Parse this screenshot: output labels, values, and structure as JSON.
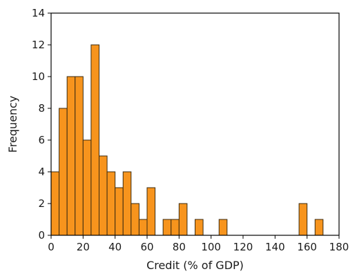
{
  "chart_data": {
    "type": "bar",
    "title": "",
    "xlabel": "Credit (% of GDP)",
    "ylabel": "Frequency",
    "xlim": [
      0,
      180
    ],
    "ylim": [
      0,
      14
    ],
    "xticks": [
      0,
      20,
      40,
      60,
      80,
      100,
      120,
      140,
      160,
      180
    ],
    "yticks": [
      0,
      2,
      4,
      6,
      8,
      10,
      12,
      14
    ],
    "bin_width": 5,
    "bins": [
      {
        "x0": 0,
        "x1": 5,
        "value": 4
      },
      {
        "x0": 5,
        "x1": 10,
        "value": 8
      },
      {
        "x0": 10,
        "x1": 15,
        "value": 10
      },
      {
        "x0": 15,
        "x1": 20,
        "value": 10
      },
      {
        "x0": 20,
        "x1": 25,
        "value": 6
      },
      {
        "x0": 25,
        "x1": 30,
        "value": 12
      },
      {
        "x0": 30,
        "x1": 35,
        "value": 5
      },
      {
        "x0": 35,
        "x1": 40,
        "value": 4
      },
      {
        "x0": 40,
        "x1": 45,
        "value": 3
      },
      {
        "x0": 45,
        "x1": 50,
        "value": 4
      },
      {
        "x0": 50,
        "x1": 55,
        "value": 2
      },
      {
        "x0": 55,
        "x1": 60,
        "value": 1
      },
      {
        "x0": 60,
        "x1": 65,
        "value": 3
      },
      {
        "x0": 70,
        "x1": 75,
        "value": 1
      },
      {
        "x0": 75,
        "x1": 80,
        "value": 1
      },
      {
        "x0": 80,
        "x1": 85,
        "value": 2
      },
      {
        "x0": 90,
        "x1": 95,
        "value": 1
      },
      {
        "x0": 105,
        "x1": 110,
        "value": 1
      },
      {
        "x0": 155,
        "x1": 160,
        "value": 2
      },
      {
        "x0": 165,
        "x1": 170,
        "value": 1
      }
    ],
    "bar_color": "#F7941D",
    "grid": false,
    "legend": "none"
  }
}
